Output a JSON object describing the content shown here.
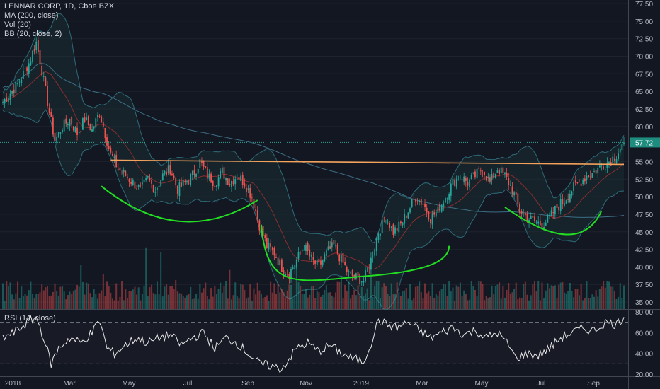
{
  "legend": {
    "symbol": "LENNAR CORP, 1D, Cboe BZX",
    "ma": "MA (200, close)",
    "vol": "Vol (20)",
    "bb": "BB (20, close, 2)",
    "rsi": "RSI (14, close)"
  },
  "colors": {
    "background": "#131722",
    "up": "#26a69a",
    "down": "#ef5350",
    "resistance": "#f5a35c",
    "pattern": "#22dd22",
    "bb_fill": "#1c3a3a",
    "price_badge": "#1e8c7e"
  },
  "chart_data": [
    {
      "type": "candlestick",
      "title": "LENNAR CORP, 1D, Cboe BZX",
      "y_ticks": [
        "77.50",
        "75.00",
        "72.50",
        "70.00",
        "67.50",
        "65.00",
        "62.50",
        "60.00",
        "57.50",
        "55.00",
        "52.50",
        "50.00",
        "47.50",
        "45.00",
        "42.50",
        "40.00",
        "37.50",
        "35.00"
      ],
      "ylim": [
        34,
        78
      ],
      "x_ticks": [
        "2018",
        "Mar",
        "May",
        "Jul",
        "Sep",
        "Nov",
        "2019",
        "Mar",
        "May",
        "Jul",
        "Sep"
      ],
      "last_price": "57.72",
      "close_keypoints": [
        [
          0,
          63.5
        ],
        [
          8,
          66
        ],
        [
          14,
          69
        ],
        [
          18,
          72
        ],
        [
          21,
          68
        ],
        [
          25,
          62
        ],
        [
          28,
          58
        ],
        [
          32,
          60
        ],
        [
          36,
          61
        ],
        [
          40,
          59
        ],
        [
          44,
          61
        ],
        [
          48,
          59.5
        ],
        [
          52,
          62
        ],
        [
          55,
          59
        ],
        [
          58,
          56
        ],
        [
          62,
          54
        ],
        [
          66,
          53
        ],
        [
          70,
          52
        ],
        [
          74,
          51
        ],
        [
          78,
          52.5
        ],
        [
          82,
          51
        ],
        [
          86,
          53
        ],
        [
          90,
          54
        ],
        [
          94,
          51
        ],
        [
          98,
          52
        ],
        [
          102,
          53
        ],
        [
          106,
          55
        ],
        [
          110,
          53
        ],
        [
          114,
          52
        ],
        [
          118,
          53.5
        ],
        [
          122,
          52
        ],
        [
          126,
          53
        ],
        [
          130,
          52
        ],
        [
          134,
          50
        ],
        [
          138,
          46
        ],
        [
          142,
          43
        ],
        [
          146,
          42
        ],
        [
          150,
          40
        ],
        [
          154,
          39
        ],
        [
          158,
          41
        ],
        [
          162,
          43
        ],
        [
          166,
          41
        ],
        [
          170,
          40
        ],
        [
          174,
          42
        ],
        [
          178,
          43
        ],
        [
          182,
          41
        ],
        [
          186,
          39
        ],
        [
          190,
          38.5
        ],
        [
          194,
          38
        ],
        [
          198,
          41
        ],
        [
          202,
          45
        ],
        [
          206,
          47
        ],
        [
          210,
          45
        ],
        [
          214,
          46
        ],
        [
          218,
          48
        ],
        [
          222,
          50
        ],
        [
          226,
          49
        ],
        [
          230,
          47
        ],
        [
          234,
          48
        ],
        [
          238,
          50
        ],
        [
          242,
          52
        ],
        [
          246,
          53
        ],
        [
          250,
          52
        ],
        [
          254,
          53
        ],
        [
          258,
          54
        ],
        [
          262,
          52
        ],
        [
          266,
          54
        ],
        [
          270,
          53
        ],
        [
          274,
          51
        ],
        [
          278,
          48
        ],
        [
          282,
          47
        ],
        [
          286,
          46.5
        ],
        [
          290,
          46
        ],
        [
          294,
          47
        ],
        [
          298,
          48.5
        ],
        [
          302,
          49.5
        ],
        [
          306,
          51
        ],
        [
          310,
          52
        ],
        [
          314,
          53
        ],
        [
          318,
          53.5
        ],
        [
          322,
          54.5
        ],
        [
          326,
          55
        ],
        [
          330,
          56
        ],
        [
          334,
          57.72
        ]
      ],
      "volume_note": "volume histogram along bottom of price pane",
      "resistance_line": {
        "label": "",
        "from": [
          58,
          55.2
        ],
        "to": [
          334,
          54.6
        ]
      },
      "pattern_arcs": [
        "left shoulder",
        "head",
        "right shoulder"
      ]
    },
    {
      "type": "line",
      "title": "RSI (14, close)",
      "y_ticks": [
        "80.00",
        "60.00",
        "40.00",
        "20.00"
      ],
      "ylim": [
        18,
        82
      ],
      "bands": [
        70,
        30
      ],
      "rsi_keypoints": [
        [
          0,
          55
        ],
        [
          6,
          60
        ],
        [
          12,
          68
        ],
        [
          18,
          75
        ],
        [
          22,
          55
        ],
        [
          26,
          30
        ],
        [
          30,
          45
        ],
        [
          36,
          55
        ],
        [
          42,
          50
        ],
        [
          48,
          60
        ],
        [
          52,
          72
        ],
        [
          56,
          45
        ],
        [
          60,
          40
        ],
        [
          66,
          48
        ],
        [
          72,
          55
        ],
        [
          78,
          50
        ],
        [
          84,
          55
        ],
        [
          90,
          58
        ],
        [
          96,
          48
        ],
        [
          102,
          55
        ],
        [
          108,
          60
        ],
        [
          114,
          45
        ],
        [
          120,
          55
        ],
        [
          126,
          50
        ],
        [
          132,
          40
        ],
        [
          138,
          30
        ],
        [
          144,
          28
        ],
        [
          150,
          25
        ],
        [
          154,
          35
        ],
        [
          158,
          45
        ],
        [
          164,
          50
        ],
        [
          170,
          42
        ],
        [
          176,
          48
        ],
        [
          182,
          40
        ],
        [
          188,
          35
        ],
        [
          194,
          32
        ],
        [
          198,
          50
        ],
        [
          202,
          72
        ],
        [
          206,
          68
        ],
        [
          212,
          65
        ],
        [
          218,
          70
        ],
        [
          224,
          62
        ],
        [
          230,
          55
        ],
        [
          236,
          60
        ],
        [
          242,
          65
        ],
        [
          248,
          58
        ],
        [
          254,
          62
        ],
        [
          260,
          55
        ],
        [
          266,
          60
        ],
        [
          272,
          48
        ],
        [
          276,
          35
        ],
        [
          282,
          40
        ],
        [
          288,
          38
        ],
        [
          294,
          45
        ],
        [
          300,
          55
        ],
        [
          306,
          60
        ],
        [
          312,
          64
        ],
        [
          318,
          62
        ],
        [
          324,
          70
        ],
        [
          330,
          68
        ],
        [
          334,
          75
        ]
      ]
    }
  ]
}
